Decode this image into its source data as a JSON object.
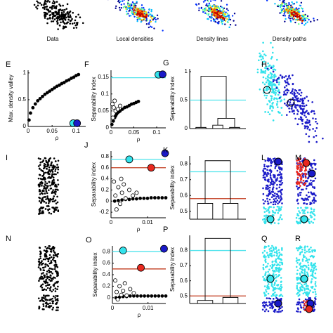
{
  "top_labels": [
    "Data",
    "Local densities",
    "Density lines",
    "Density paths"
  ],
  "other_panels": [
    "H",
    "I",
    "L",
    "M",
    "N",
    "Q",
    "R"
  ],
  "chart_data": [
    {
      "type": "scatter",
      "label": "E",
      "xlabel": "ρ",
      "ylabel": "Max. density valley",
      "xlim": [
        0,
        0.12
      ],
      "ylim": [
        0,
        1.05
      ],
      "xticks": [
        0,
        0.05,
        0.1
      ],
      "yticks": [
        0,
        0.5,
        1
      ],
      "series": [
        {
          "color": "#000000",
          "marker": "dot",
          "x": [
            0.002,
            0.005,
            0.01,
            0.015,
            0.02,
            0.025,
            0.03,
            0.035,
            0.04,
            0.045,
            0.05,
            0.055,
            0.06,
            0.065,
            0.07,
            0.075,
            0.08,
            0.085,
            0.09,
            0.095,
            0.1,
            0.105
          ],
          "y": [
            0.12,
            0.25,
            0.35,
            0.42,
            0.48,
            0.52,
            0.56,
            0.6,
            0.63,
            0.66,
            0.69,
            0.72,
            0.75,
            0.77,
            0.8,
            0.82,
            0.85,
            0.87,
            0.9,
            0.92,
            0.95,
            0.97
          ]
        }
      ],
      "highlights": [
        {
          "color": "#33e3ec",
          "x": 0.094,
          "y": 0.06
        },
        {
          "color": "#1a1ac8",
          "x": 0.102,
          "y": 0.06
        }
      ],
      "hlines": []
    },
    {
      "type": "scatter",
      "label": "F",
      "xlabel": "ρ",
      "ylabel": "Separability index",
      "xlim": [
        0,
        0.12
      ],
      "ylim": [
        0,
        0.17
      ],
      "xticks": [
        0,
        0.05,
        0.1
      ],
      "yticks": [
        0,
        0.05,
        0.1,
        0.15
      ],
      "series": [
        {
          "color": "#000000",
          "marker": "dot",
          "x": [
            0.002,
            0.005,
            0.008,
            0.01,
            0.012,
            0.015,
            0.018,
            0.02,
            0.025,
            0.03,
            0.035,
            0.04,
            0.045,
            0.05,
            0.055,
            0.06
          ],
          "y": [
            0.01,
            0.02,
            0.03,
            0.035,
            0.04,
            0.045,
            0.048,
            0.05,
            0.055,
            0.06,
            0.062,
            0.066,
            0.07,
            0.072,
            0.075,
            0.078
          ]
        },
        {
          "color": "#000000",
          "marker": "open",
          "x": [
            0.003,
            0.006,
            0.01,
            0.004,
            0.015,
            0.02,
            0.008
          ],
          "y": [
            0.07,
            0.06,
            0.05,
            0.03,
            0.055,
            0.065,
            0.08
          ]
        }
      ],
      "highlights": [
        {
          "color": "#33e3ec",
          "x": 0.104,
          "y": 0.157
        },
        {
          "color": "#1a1ac8",
          "x": 0.113,
          "y": 0.158
        }
      ],
      "hlines": [
        {
          "color": "#4fe3ec",
          "y": 0.148
        }
      ]
    },
    {
      "type": "dendrogram",
      "label": "G",
      "ylabel": "Separability index",
      "ylim": [
        0,
        1.05
      ],
      "yticks": [
        0,
        0.5,
        1
      ],
      "tree": {
        "height": 0.92,
        "children": [
          {
            "height": 0.02
          },
          {
            "height": 0.18,
            "children": [
              {
                "height": 0.06
              },
              {
                "height": 0.02
              }
            ]
          }
        ]
      },
      "hlines": [
        {
          "color": "#4fe3ec",
          "y": 0.5
        }
      ]
    },
    {
      "type": "scatter",
      "label": "J",
      "xlabel": "ρ",
      "ylabel": "Separability index",
      "xlim": [
        0,
        0.015
      ],
      "ylim": [
        -0.3,
        0.9
      ],
      "xticks": [
        0,
        0.01
      ],
      "yticks": [
        -0.2,
        0,
        0.2,
        0.4,
        0.6,
        0.8
      ],
      "series": [
        {
          "color": "#000000",
          "marker": "dot",
          "x": [
            0.001,
            0.002,
            0.003,
            0.004,
            0.005,
            0.006,
            0.007,
            0.008,
            0.009,
            0.01,
            0.011,
            0.012,
            0.013,
            0.014,
            0.015
          ],
          "y": [
            0.0,
            0.01,
            0.02,
            0.03,
            0.03,
            0.04,
            0.04,
            0.05,
            0.05,
            0.05,
            0.06,
            0.06,
            0.06,
            0.06,
            0.06
          ]
        },
        {
          "color": "#000000",
          "marker": "open",
          "x": [
            0.0008,
            0.0012,
            0.002,
            0.0025,
            0.003,
            0.0035,
            0.004,
            0.005,
            0.006,
            0.007,
            0.0015,
            0.0028
          ],
          "y": [
            0.35,
            0.1,
            0.25,
            -0.05,
            0.15,
            0.3,
            0.05,
            0.2,
            0.1,
            0.15,
            -0.15,
            0.4
          ]
        }
      ],
      "highlights": [
        {
          "color": "#33e3ec",
          "x": 0.005,
          "y": 0.75
        },
        {
          "color": "#1a1ac8",
          "x": 0.0148,
          "y": 0.86
        },
        {
          "color": "#e8281e",
          "x": 0.011,
          "y": 0.6
        }
      ],
      "hlines": [
        {
          "color": "#4fe3ec",
          "y": 0.75
        },
        {
          "color": "#c0391b",
          "y": 0.6
        }
      ]
    },
    {
      "type": "dendrogram",
      "label": "K",
      "ylabel": "Separability index",
      "ylim": [
        0.45,
        0.85
      ],
      "yticks": [
        0.5,
        0.6,
        0.7,
        0.8
      ],
      "tree": {
        "height": 0.82,
        "children": [
          {
            "height": 0.55
          },
          {
            "height": 0.55
          }
        ]
      },
      "hlines": [
        {
          "color": "#4fe3ec",
          "y": 0.75
        },
        {
          "color": "#c0391b",
          "y": 0.58
        }
      ]
    },
    {
      "type": "scatter",
      "label": "O",
      "xlabel": "ρ",
      "ylabel": "Separability index",
      "xlim": [
        0,
        0.015
      ],
      "ylim": [
        -0.1,
        0.9
      ],
      "xticks": [
        0,
        0.01
      ],
      "yticks": [
        0,
        0.2,
        0.4,
        0.6,
        0.8
      ],
      "series": [
        {
          "color": "#000000",
          "marker": "dot",
          "x": [
            0.001,
            0.002,
            0.003,
            0.004,
            0.005,
            0.006,
            0.007,
            0.008,
            0.009,
            0.01,
            0.011,
            0.012,
            0.013,
            0.014,
            0.015
          ],
          "y": [
            0.0,
            0.01,
            0.02,
            0.02,
            0.03,
            0.03,
            0.03,
            0.03,
            0.03,
            0.03,
            0.03,
            0.03,
            0.03,
            0.03,
            0.03
          ]
        },
        {
          "color": "#000000",
          "marker": "open",
          "x": [
            0.0008,
            0.0012,
            0.002,
            0.0025,
            0.003,
            0.0035,
            0.004,
            0.005,
            0.006,
            0.0015
          ],
          "y": [
            0.3,
            0.1,
            0.2,
            0.05,
            0.12,
            0.25,
            0.04,
            0.15,
            0.08,
            -0.03
          ]
        }
      ],
      "highlights": [
        {
          "color": "#33e3ec",
          "x": 0.003,
          "y": 0.82
        },
        {
          "color": "#1a1ac8",
          "x": 0.0145,
          "y": 0.85
        },
        {
          "color": "#e8281e",
          "x": 0.008,
          "y": 0.52
        }
      ],
      "hlines": [
        {
          "color": "#4fe3ec",
          "y": 0.8
        },
        {
          "color": "#c0391b",
          "y": 0.5
        }
      ]
    },
    {
      "type": "dendrogram",
      "label": "P",
      "ylabel": "Separability index",
      "ylim": [
        0.45,
        0.9
      ],
      "yticks": [
        0.5,
        0.6,
        0.7,
        0.8
      ],
      "tree": {
        "height": 0.88,
        "children": [
          {
            "height": 0.47
          },
          {
            "height": 0.49
          }
        ]
      },
      "hlines": [
        {
          "color": "#4fe3ec",
          "y": 0.8
        },
        {
          "color": "#c0391b",
          "y": 0.5
        }
      ]
    }
  ]
}
